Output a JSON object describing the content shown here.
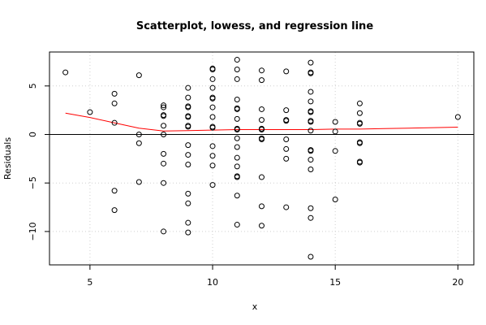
{
  "chart_data": {
    "type": "scatter",
    "title": "Scatterplot, lowess, and regression line",
    "xlabel": "x",
    "ylabel": "Residuals",
    "xlim": [
      3.35,
      20.65
    ],
    "ylim": [
      -13.44,
      8.5
    ],
    "x_ticks": [
      5,
      10,
      15,
      20
    ],
    "y_ticks": [
      -10,
      -5,
      0,
      5
    ],
    "x_tick_labels": [
      "5",
      "10",
      "15",
      "20"
    ],
    "y_tick_labels": [
      "−10",
      "−5",
      "0",
      "5"
    ],
    "grid": true,
    "points": [
      [
        4,
        6.4
      ],
      [
        5,
        2.3
      ],
      [
        6,
        4.2
      ],
      [
        6,
        3.2
      ],
      [
        6,
        1.2
      ],
      [
        6,
        -5.8
      ],
      [
        6,
        -7.8
      ],
      [
        7,
        6.1
      ],
      [
        7,
        0.0
      ],
      [
        7,
        -0.9
      ],
      [
        7,
        -4.9
      ],
      [
        8,
        3.0
      ],
      [
        8,
        2.8
      ],
      [
        8,
        2.0
      ],
      [
        8,
        1.9
      ],
      [
        8,
        0.9
      ],
      [
        8,
        0.0
      ],
      [
        8,
        -2.0
      ],
      [
        8,
        -3.0
      ],
      [
        8,
        -5.0
      ],
      [
        8,
        -10.0
      ],
      [
        9,
        4.8
      ],
      [
        9,
        3.8
      ],
      [
        9,
        2.9
      ],
      [
        9,
        2.8
      ],
      [
        9,
        1.9
      ],
      [
        9,
        1.8
      ],
      [
        9,
        0.9
      ],
      [
        9,
        0.8
      ],
      [
        9,
        -1.1
      ],
      [
        9,
        -2.1
      ],
      [
        9,
        -3.1
      ],
      [
        9,
        -6.1
      ],
      [
        9,
        -7.1
      ],
      [
        9,
        -9.1
      ],
      [
        9,
        -10.1
      ],
      [
        10,
        6.8
      ],
      [
        10,
        6.7
      ],
      [
        10,
        5.7
      ],
      [
        10,
        4.8
      ],
      [
        10,
        3.8
      ],
      [
        10,
        3.7
      ],
      [
        10,
        2.8
      ],
      [
        10,
        1.8
      ],
      [
        10,
        0.8
      ],
      [
        10,
        0.7
      ],
      [
        10,
        -1.2
      ],
      [
        10,
        -2.2
      ],
      [
        10,
        -3.2
      ],
      [
        10,
        -5.2
      ],
      [
        11,
        7.7
      ],
      [
        11,
        6.7
      ],
      [
        11,
        5.7
      ],
      [
        11,
        3.6
      ],
      [
        11,
        2.7
      ],
      [
        11,
        2.6
      ],
      [
        11,
        1.6
      ],
      [
        11,
        0.6
      ],
      [
        11,
        0.5
      ],
      [
        11,
        -0.4
      ],
      [
        11,
        -1.3
      ],
      [
        11,
        -2.4
      ],
      [
        11,
        -3.3
      ],
      [
        11,
        -4.3
      ],
      [
        11,
        -4.4
      ],
      [
        11,
        -6.3
      ],
      [
        11,
        -9.3
      ],
      [
        12,
        6.6
      ],
      [
        12,
        5.6
      ],
      [
        12,
        2.6
      ],
      [
        12,
        1.5
      ],
      [
        12,
        0.6
      ],
      [
        12,
        0.5
      ],
      [
        12,
        -0.4
      ],
      [
        12,
        -0.5
      ],
      [
        12,
        -4.4
      ],
      [
        12,
        -7.4
      ],
      [
        12,
        -9.4
      ],
      [
        13,
        6.5
      ],
      [
        13,
        2.5
      ],
      [
        13,
        1.5
      ],
      [
        13,
        1.4
      ],
      [
        13,
        -0.5
      ],
      [
        13,
        -1.5
      ],
      [
        13,
        -2.5
      ],
      [
        13,
        -7.5
      ],
      [
        14,
        7.4
      ],
      [
        14,
        6.4
      ],
      [
        14,
        6.3
      ],
      [
        14,
        4.4
      ],
      [
        14,
        3.4
      ],
      [
        14,
        2.4
      ],
      [
        14,
        2.3
      ],
      [
        14,
        1.4
      ],
      [
        14,
        1.3
      ],
      [
        14,
        0.4
      ],
      [
        14,
        -1.6
      ],
      [
        14,
        -1.7
      ],
      [
        14,
        -2.6
      ],
      [
        14,
        -3.6
      ],
      [
        14,
        -7.6
      ],
      [
        14,
        -8.6
      ],
      [
        14,
        -12.6
      ],
      [
        15,
        1.3
      ],
      [
        15,
        0.3
      ],
      [
        15,
        -1.7
      ],
      [
        15,
        -6.7
      ],
      [
        16,
        3.2
      ],
      [
        16,
        2.2
      ],
      [
        16,
        1.2
      ],
      [
        16,
        1.1
      ],
      [
        16,
        -0.8
      ],
      [
        16,
        -0.9
      ],
      [
        16,
        -2.8
      ],
      [
        16,
        -2.9
      ],
      [
        20,
        1.8
      ]
    ],
    "lowess": [
      [
        4,
        2.2
      ],
      [
        5,
        1.75
      ],
      [
        6,
        1.2
      ],
      [
        7,
        0.65
      ],
      [
        8,
        0.35
      ],
      [
        9,
        0.4
      ],
      [
        10,
        0.45
      ],
      [
        11,
        0.5
      ],
      [
        12,
        0.5
      ],
      [
        13,
        0.5
      ],
      [
        14,
        0.5
      ],
      [
        15,
        0.55
      ],
      [
        16,
        0.55
      ],
      [
        17,
        0.6
      ],
      [
        18,
        0.65
      ],
      [
        19,
        0.7
      ],
      [
        20,
        0.75
      ]
    ],
    "regression_line": {
      "slope": 0,
      "intercept": 0
    },
    "colors": {
      "points": "#000000",
      "lowess": "#ff0000",
      "regression": "#000000",
      "grid": "#cfcfcf",
      "frame": "#000000"
    }
  }
}
